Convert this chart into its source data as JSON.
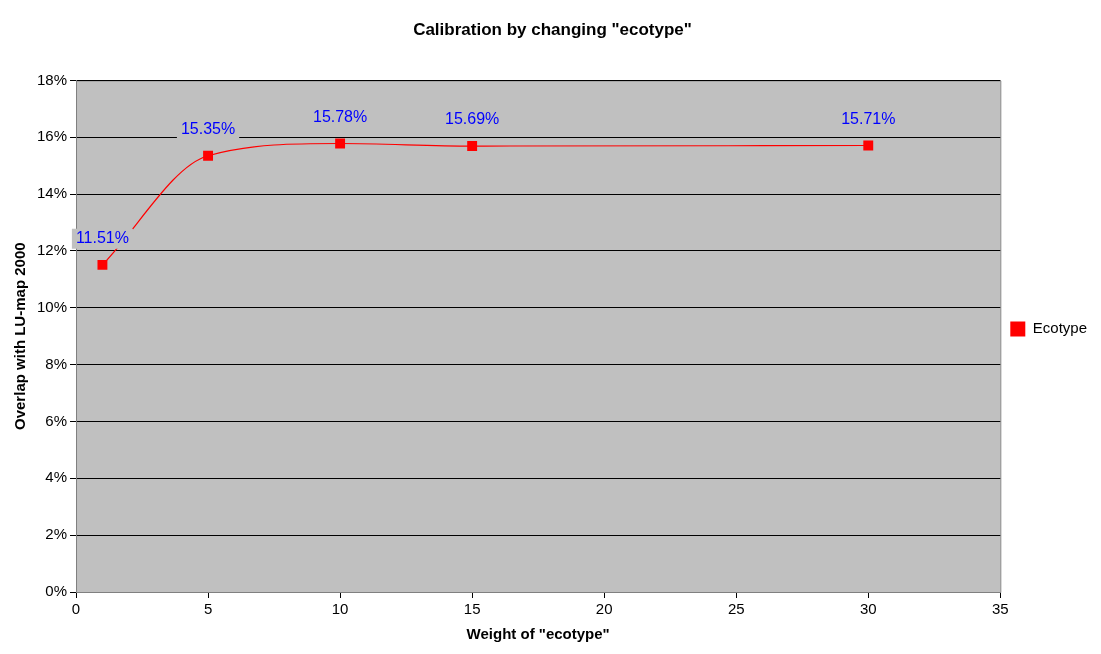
{
  "chart_data": {
    "type": "line",
    "title": "Calibration by changing \"ecotype\"",
    "xlabel": "Weight of \"ecotype\"",
    "ylabel": "Overlap with LU-map 2000",
    "x": [
      1,
      5,
      10,
      15,
      30
    ],
    "series": [
      {
        "name": "Ecotype",
        "color": "#ff0000",
        "values": [
          11.51,
          15.35,
          15.78,
          15.69,
          15.71
        ],
        "value_labels": [
          "11.51%",
          "15.35%",
          "15.78%",
          "15.69%",
          "15.71%"
        ]
      }
    ],
    "xlim": [
      0,
      35
    ],
    "xticks": [
      0,
      5,
      10,
      15,
      20,
      25,
      30,
      35
    ],
    "ylim": [
      0,
      18
    ],
    "yticks": [
      {
        "value": 0,
        "label": "0%"
      },
      {
        "value": 2,
        "label": "2%"
      },
      {
        "value": 4,
        "label": "4%"
      },
      {
        "value": 6,
        "label": "6%"
      },
      {
        "value": 8,
        "label": "8%"
      },
      {
        "value": 10,
        "label": "10%"
      },
      {
        "value": 12,
        "label": "12%"
      },
      {
        "value": 14,
        "label": "14%"
      },
      {
        "value": 16,
        "label": "16%"
      },
      {
        "value": 18,
        "label": "18%"
      }
    ],
    "grid": "y",
    "legend": "right",
    "marker": "square",
    "line_style": "solid"
  }
}
